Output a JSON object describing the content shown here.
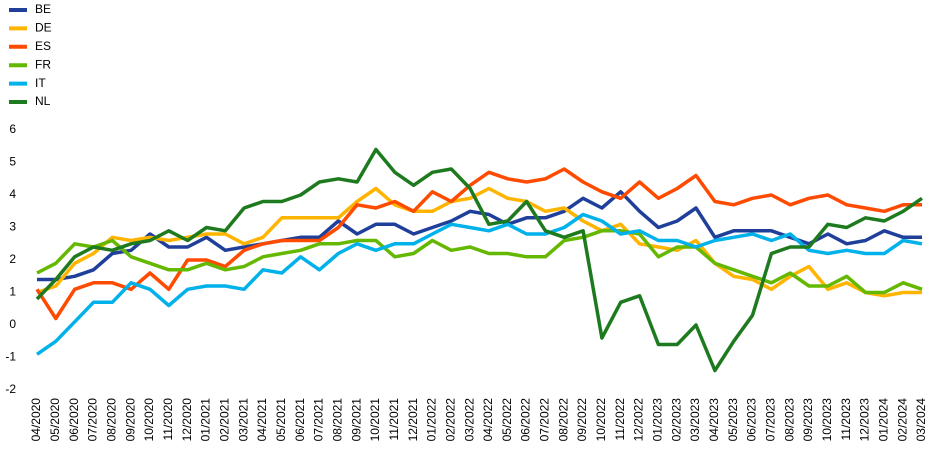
{
  "chart_data": {
    "type": "line",
    "categories": [
      "04/2020",
      "05/2020",
      "06/2020",
      "07/2020",
      "08/2020",
      "09/2020",
      "10/2020",
      "11/2020",
      "12/2020",
      "01/2021",
      "02/2021",
      "03/2021",
      "04/2021",
      "05/2021",
      "06/2021",
      "07/2021",
      "08/2021",
      "09/2021",
      "10/2021",
      "11/2021",
      "12/2021",
      "01/2022",
      "02/2022",
      "03/2022",
      "04/2022",
      "05/2022",
      "06/2022",
      "07/2022",
      "08/2022",
      "09/2022",
      "10/2022",
      "11/2022",
      "12/2022",
      "01/2023",
      "02/2023",
      "03/2023",
      "04/2023",
      "05/2023",
      "06/2023",
      "07/2023",
      "08/2023",
      "09/2023",
      "10/2023",
      "11/2023",
      "12/2023",
      "01/2024",
      "02/2024",
      "03/2024"
    ],
    "series": [
      {
        "name": "BE",
        "color": "#1f3f9b",
        "values": [
          1.4,
          1.4,
          1.5,
          1.7,
          2.2,
          2.3,
          2.8,
          2.4,
          2.4,
          2.7,
          2.3,
          2.4,
          2.5,
          2.6,
          2.7,
          2.7,
          3.2,
          2.8,
          3.1,
          3.1,
          2.8,
          3.0,
          3.2,
          3.5,
          3.4,
          3.1,
          3.3,
          3.3,
          3.5,
          3.9,
          3.6,
          4.1,
          3.5,
          3.0,
          3.2,
          3.6,
          2.7,
          2.9,
          2.9,
          2.9,
          2.7,
          2.5,
          2.8,
          2.5,
          2.6,
          2.9,
          2.7,
          2.7
        ]
      },
      {
        "name": "DE",
        "color": "#ffb400",
        "values": [
          1.0,
          1.2,
          1.9,
          2.2,
          2.7,
          2.6,
          2.7,
          2.6,
          2.7,
          2.8,
          2.8,
          2.5,
          2.7,
          3.3,
          3.3,
          3.3,
          3.3,
          3.8,
          4.2,
          3.7,
          3.5,
          3.5,
          3.8,
          3.9,
          4.2,
          3.9,
          3.8,
          3.5,
          3.6,
          3.2,
          2.9,
          3.1,
          2.5,
          2.4,
          2.3,
          2.6,
          1.9,
          1.5,
          1.4,
          1.1,
          1.5,
          1.8,
          1.1,
          1.3,
          1.0,
          0.9,
          1.0,
          1.0
        ]
      },
      {
        "name": "ES",
        "color": "#ff4b00",
        "values": [
          1.1,
          0.2,
          1.1,
          1.3,
          1.3,
          1.1,
          1.6,
          1.1,
          2.0,
          2.0,
          1.8,
          2.3,
          2.5,
          2.6,
          2.6,
          2.6,
          3.0,
          3.7,
          3.6,
          3.8,
          3.5,
          4.1,
          3.8,
          4.3,
          4.7,
          4.5,
          4.4,
          4.5,
          4.8,
          4.4,
          4.1,
          3.9,
          4.4,
          3.9,
          4.2,
          4.6,
          3.8,
          3.7,
          3.9,
          4.0,
          3.7,
          3.9,
          4.0,
          3.7,
          3.6,
          3.5,
          3.7,
          3.7
        ]
      },
      {
        "name": "FR",
        "color": "#65b800",
        "values": [
          1.6,
          1.9,
          2.5,
          2.4,
          2.6,
          2.1,
          1.9,
          1.7,
          1.7,
          1.9,
          1.7,
          1.8,
          2.1,
          2.2,
          2.3,
          2.5,
          2.5,
          2.6,
          2.6,
          2.1,
          2.2,
          2.6,
          2.3,
          2.4,
          2.2,
          2.2,
          2.1,
          2.1,
          2.6,
          2.7,
          2.9,
          2.9,
          2.8,
          2.1,
          2.4,
          2.4,
          1.9,
          1.7,
          1.5,
          1.3,
          1.6,
          1.2,
          1.2,
          1.5,
          1.0,
          1.0,
          1.3,
          1.1
        ]
      },
      {
        "name": "IT",
        "color": "#00b1ea",
        "values": [
          -0.9,
          -0.5,
          0.1,
          0.7,
          0.7,
          1.3,
          1.1,
          0.6,
          1.1,
          1.2,
          1.2,
          1.1,
          1.7,
          1.6,
          2.1,
          1.7,
          2.2,
          2.5,
          2.3,
          2.5,
          2.5,
          2.8,
          3.1,
          3.0,
          2.9,
          3.1,
          2.8,
          2.8,
          3.0,
          3.4,
          3.2,
          2.8,
          2.9,
          2.6,
          2.6,
          2.4,
          2.6,
          2.7,
          2.8,
          2.6,
          2.8,
          2.3,
          2.2,
          2.3,
          2.2,
          2.2,
          2.6,
          2.5
        ]
      },
      {
        "name": "NL",
        "color": "#1e7a1e",
        "values": [
          0.8,
          1.4,
          2.1,
          2.4,
          2.3,
          2.5,
          2.6,
          2.9,
          2.6,
          3.0,
          2.9,
          3.6,
          3.8,
          3.8,
          4.0,
          4.4,
          4.5,
          4.4,
          5.4,
          4.7,
          4.3,
          4.7,
          4.8,
          4.2,
          3.1,
          3.2,
          3.8,
          2.9,
          2.7,
          2.9,
          -0.4,
          0.7,
          0.9,
          -0.6,
          -0.6,
          0.0,
          -1.4,
          -0.5,
          0.3,
          2.2,
          2.4,
          2.4,
          3.1,
          3.0,
          3.3,
          3.2,
          3.5,
          3.9
        ]
      }
    ],
    "ylim": [
      -2,
      6
    ],
    "yticks": [
      -2,
      -1,
      0,
      1,
      2,
      3,
      4,
      5,
      6
    ],
    "grid": false,
    "legend": "top-left"
  }
}
